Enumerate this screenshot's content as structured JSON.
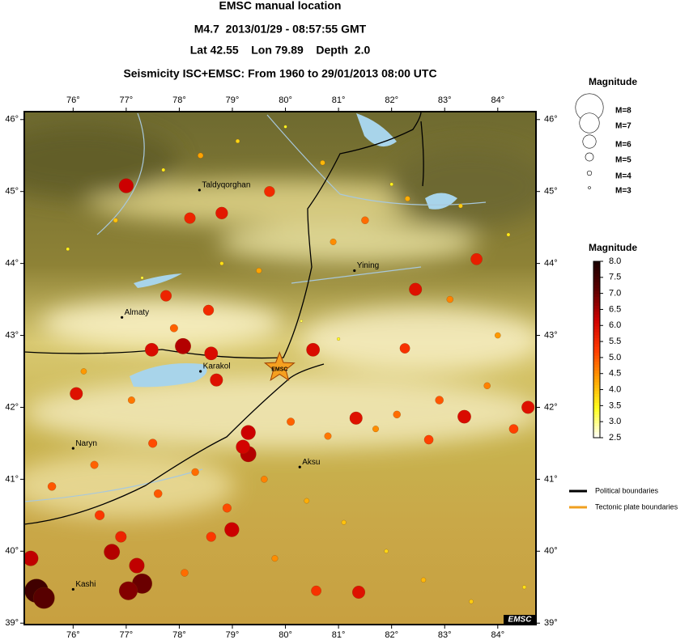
{
  "header": {
    "title": "EMSC manual location",
    "event": "M4.7  2013/01/29 - 08:57:55 GMT",
    "location": "Lat 42.55    Lon 79.89    Depth  2.0",
    "subtitle": "Seismicity ISC+EMSC: From 1960 to 29/01/2013 08:00 UTC"
  },
  "map": {
    "lonlim": [
      75.08,
      84.72
    ],
    "latlim": [
      38.98,
      46.11
    ],
    "lonticks": [
      {
        "value": 76,
        "label": "76°"
      },
      {
        "value": 77,
        "label": "77°"
      },
      {
        "value": 78,
        "label": "78°"
      },
      {
        "value": 79,
        "label": "79°"
      },
      {
        "value": 80,
        "label": "80°"
      },
      {
        "value": 81,
        "label": "81°"
      },
      {
        "value": 82,
        "label": "82°"
      },
      {
        "value": 83,
        "label": "83°"
      },
      {
        "value": 84,
        "label": "84°"
      }
    ],
    "latticks": [
      {
        "value": 39,
        "label": "39°"
      },
      {
        "value": 40,
        "label": "40°"
      },
      {
        "value": 41,
        "label": "41°"
      },
      {
        "value": 42,
        "label": "42°"
      },
      {
        "value": 43,
        "label": "43°"
      },
      {
        "value": 44,
        "label": "44°"
      },
      {
        "value": 45,
        "label": "45°"
      },
      {
        "value": 46,
        "label": "46°"
      }
    ],
    "cities": [
      {
        "name": "Taldyqorghan",
        "lon": 78.38,
        "lat": 45.02
      },
      {
        "name": "Almaty",
        "lon": 76.92,
        "lat": 43.25
      },
      {
        "name": "Yining",
        "lon": 81.3,
        "lat": 43.9
      },
      {
        "name": "Karakol",
        "lon": 78.4,
        "lat": 42.5
      },
      {
        "name": "Naryn",
        "lon": 76.0,
        "lat": 41.43
      },
      {
        "name": "Aksu",
        "lon": 80.27,
        "lat": 41.17
      },
      {
        "name": "Kashi",
        "lon": 76.0,
        "lat": 39.47
      }
    ],
    "epicenter": {
      "label": "EMSC",
      "lon": 79.89,
      "lat": 42.55
    },
    "events": {
      "lon": [
        75.31,
        75.45,
        75.2,
        76.73,
        77.04,
        77.3,
        77.2,
        77.0,
        78.07,
        77.48,
        78.6,
        78.7,
        76.06,
        80.52,
        79.3,
        79.3,
        79.2,
        78.99,
        81.33,
        83.37,
        84.57,
        82.45,
        83.6,
        81.38,
        78.8,
        78.2,
        79.7,
        77.75,
        78.55,
        80.58,
        82.25,
        82.7,
        76.5,
        76.9,
        77.6,
        78.3,
        78.9,
        79.6,
        80.1,
        80.8,
        81.7,
        82.1,
        82.9,
        83.8,
        84.3,
        76.2,
        77.1,
        77.9,
        79.5,
        80.9,
        81.5,
        82.3,
        83.1,
        84.0,
        75.6,
        76.4,
        77.5,
        78.1,
        78.6,
        79.8,
        80.4,
        81.1,
        81.9,
        82.6,
        83.5,
        84.5,
        75.9,
        76.8,
        77.7,
        78.4,
        79.1,
        80.0,
        80.7,
        82.0,
        83.3,
        84.2,
        77.3,
        78.8,
        80.3,
        81.0
      ],
      "lat": [
        39.45,
        39.35,
        39.9,
        39.99,
        39.45,
        39.55,
        39.8,
        45.08,
        42.85,
        42.8,
        42.75,
        42.38,
        42.19,
        42.8,
        41.65,
        41.35,
        41.45,
        40.3,
        41.85,
        41.87,
        42.0,
        43.64,
        44.06,
        39.43,
        44.7,
        44.63,
        45.0,
        43.55,
        43.35,
        39.45,
        42.82,
        41.55,
        40.5,
        40.2,
        40.8,
        41.1,
        40.6,
        41.0,
        41.8,
        41.6,
        41.7,
        41.9,
        42.1,
        42.3,
        41.7,
        42.5,
        42.1,
        43.1,
        43.9,
        44.3,
        44.6,
        44.9,
        43.5,
        43.0,
        40.9,
        41.2,
        41.5,
        39.7,
        40.2,
        39.9,
        40.7,
        40.4,
        40.0,
        39.6,
        39.3,
        39.5,
        44.2,
        44.6,
        45.3,
        45.5,
        45.7,
        45.9,
        45.4,
        45.1,
        44.8,
        44.4,
        43.8,
        44.0,
        43.2,
        42.95
      ],
      "mag": [
        7.5,
        7.2,
        6.3,
        6.4,
        6.8,
        7.0,
        6.3,
        6.2,
        6.4,
        6.0,
        6.0,
        5.9,
        5.9,
        6.0,
        6.2,
        6.4,
        6.1,
        6.2,
        5.9,
        6.0,
        5.9,
        5.9,
        5.7,
        5.9,
        5.8,
        5.6,
        5.5,
        5.6,
        5.5,
        5.4,
        5.4,
        5.2,
        5.3,
        5.6,
        5.0,
        4.8,
        5.1,
        4.6,
        4.9,
        4.7,
        4.5,
        4.8,
        5.0,
        4.6,
        5.2,
        4.4,
        4.7,
        4.9,
        4.3,
        4.5,
        4.8,
        4.2,
        4.6,
        4.4,
        5.0,
        4.9,
        5.1,
        4.8,
        5.3,
        4.5,
        4.2,
        4.0,
        3.8,
        4.1,
        3.9,
        3.7,
        3.5,
        4.0,
        3.6,
        4.3,
        3.8,
        3.4,
        4.1,
        3.5,
        3.9,
        3.6,
        3.3,
        3.7,
        3.2,
        3.4
      ]
    }
  },
  "size_legend": {
    "title": "Magnitude",
    "items": [
      {
        "value": 8,
        "label": "M=8"
      },
      {
        "value": 7,
        "label": "M=7"
      },
      {
        "value": 6,
        "label": "M=6"
      },
      {
        "value": 5,
        "label": "M=5"
      },
      {
        "value": 4,
        "label": "M=4"
      },
      {
        "value": 3,
        "label": "M=3"
      }
    ]
  },
  "colorbar": {
    "title": "Magnitude",
    "range": [
      2.5,
      8
    ],
    "colors": [
      "#ffffff",
      "#ffff20",
      "#ffa000",
      "#ff3a00",
      "#d00000",
      "#600000",
      "#1a0000"
    ],
    "ticks": [
      2.5,
      {
        "value": 3,
        "label": "3.0"
      },
      3.5,
      {
        "value": 4,
        "label": "4.0"
      },
      4.5,
      {
        "value": 5,
        "label": "5.0"
      },
      5.5,
      {
        "value": 6,
        "label": "6.0"
      },
      6.5,
      {
        "value": 7,
        "label": "7.0"
      },
      7.5,
      {
        "value": 8,
        "label": "8.0"
      }
    ]
  },
  "boundaries": [
    {
      "label": "Political boundaries",
      "color": "#000000"
    },
    {
      "label": "Tectonic plate boundaries",
      "color": "#f0a020"
    }
  ],
  "badge": "EMSC"
}
